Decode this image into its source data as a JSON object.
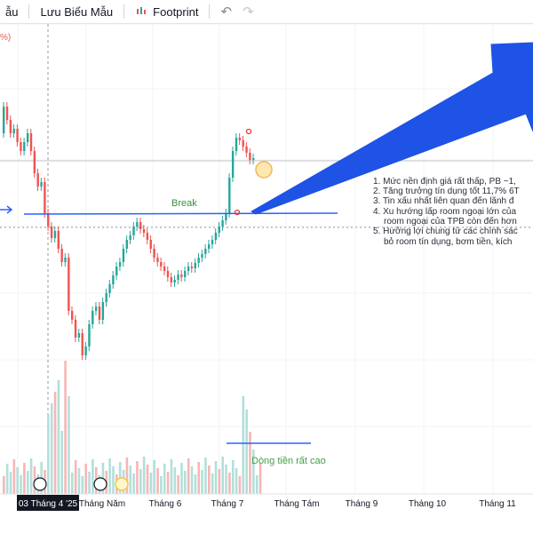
{
  "toolbar": {
    "partial_label": "ẫu",
    "save_template_label": "Lưu Biểu Mẫu",
    "footprint_label": "Footprint",
    "undo_icon": "undo-icon",
    "redo_icon": "redo-icon"
  },
  "chart": {
    "corner_label": "%)",
    "break_label": "Break",
    "money_flow_label": "Dòng tiền rất cao",
    "notes": [
      "1. Mức nền định giá rất thấp, PB ~1,",
      "2. Tăng trưởng tín dụng tốt 11,7% 6T",
      "3. Tin xấu nhất liên quan đến lãnh đ",
      "4. Xu hướng lấp room ngoại lớn của",
      "room ngoại của TPB còn đến hơn",
      "5. Hưởng lợi chung từ các chính sác",
      "bỏ room tín dụng, bơm tiền, kích"
    ],
    "xaxis": {
      "current_date_label": "03 Tháng 4 '25",
      "ticks": [
        "Tháng Năm",
        "Tháng 6",
        "Tháng 7",
        "Tháng Tám",
        "Tháng 9",
        "Tháng 10",
        "Tháng 11"
      ]
    },
    "colors": {
      "up": "#26a69a",
      "down": "#ef5350",
      "vol_up": "#b2dfdb",
      "vol_down": "#f7b6b4",
      "trendline": "#2962ff",
      "arrow": "#1e53e5",
      "break_text": "#388e3c",
      "money_text": "#43a047"
    }
  }
}
